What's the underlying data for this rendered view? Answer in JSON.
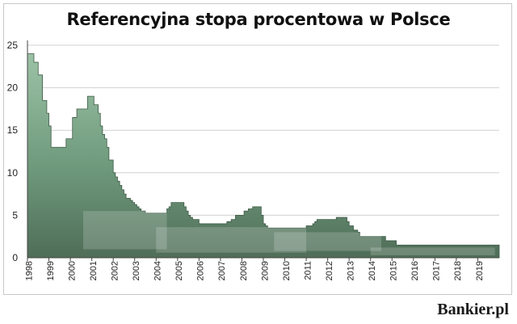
{
  "brand": "Bankier.pl",
  "chart_data": {
    "type": "area",
    "title": "Referencyjna stopa procentowa w Polsce",
    "xlabel": "",
    "ylabel": "",
    "ylim": [
      0,
      25
    ],
    "yticks": [
      0,
      5,
      10,
      15,
      20,
      25
    ],
    "xlim": [
      1998.0,
      2020.0
    ],
    "xtick_labels": [
      "1998",
      "1999",
      "2000",
      "2001",
      "2002",
      "2003",
      "2004",
      "2005",
      "2006",
      "2007",
      "2008",
      "2009",
      "2010",
      "2011",
      "2012",
      "2013",
      "2014",
      "2015",
      "2016",
      "2017",
      "2018",
      "2019"
    ],
    "grid": true,
    "legend": "none",
    "fill_color": "#7fa68c",
    "series": [
      {
        "x": [
          1998.0,
          1998.3,
          1998.5,
          1998.7,
          1998.9,
          1999.0,
          1999.1,
          1999.8,
          2000.1,
          2000.3,
          2000.7,
          2000.8,
          2001.1,
          2001.3,
          2001.4,
          2001.5,
          2001.6,
          2001.7,
          2001.8,
          2001.9,
          2002.0,
          2002.1,
          2002.2,
          2002.3,
          2002.4,
          2002.5,
          2002.6,
          2002.7,
          2002.8,
          2002.9,
          2003.0,
          2003.1,
          2003.2,
          2003.3,
          2003.4,
          2003.5,
          2004.5,
          2004.6,
          2004.7,
          2005.3,
          2005.4,
          2005.5,
          2005.6,
          2005.7,
          2006.0,
          2007.3,
          2007.5,
          2007.7,
          2007.9,
          2008.1,
          2008.3,
          2008.5,
          2008.9,
          2009.0,
          2009.1,
          2009.2,
          2009.4,
          2009.6,
          2011.0,
          2011.3,
          2011.4,
          2011.5,
          2012.4,
          2012.9,
          2013.0,
          2013.2,
          2013.4,
          2013.5,
          2014.7,
          2015.2,
          2020.0
        ],
        "y": [
          24.0,
          23.0,
          21.5,
          18.5,
          17.0,
          15.5,
          13.0,
          14.0,
          16.5,
          17.5,
          17.5,
          19.0,
          18.0,
          17.0,
          15.5,
          14.5,
          14.0,
          13.0,
          11.5,
          11.5,
          10.0,
          9.5,
          9.0,
          8.5,
          8.0,
          7.5,
          7.0,
          7.0,
          6.75,
          6.5,
          6.25,
          6.0,
          5.75,
          5.5,
          5.5,
          5.25,
          5.75,
          6.0,
          6.5,
          6.0,
          5.5,
          5.0,
          4.75,
          4.5,
          4.0,
          4.25,
          4.5,
          5.0,
          5.0,
          5.5,
          5.75,
          6.0,
          5.0,
          4.0,
          3.75,
          3.5,
          3.5,
          3.5,
          3.75,
          4.0,
          4.25,
          4.5,
          4.75,
          4.25,
          3.75,
          3.25,
          3.0,
          2.5,
          2.0,
          1.5,
          1.5
        ]
      }
    ]
  }
}
